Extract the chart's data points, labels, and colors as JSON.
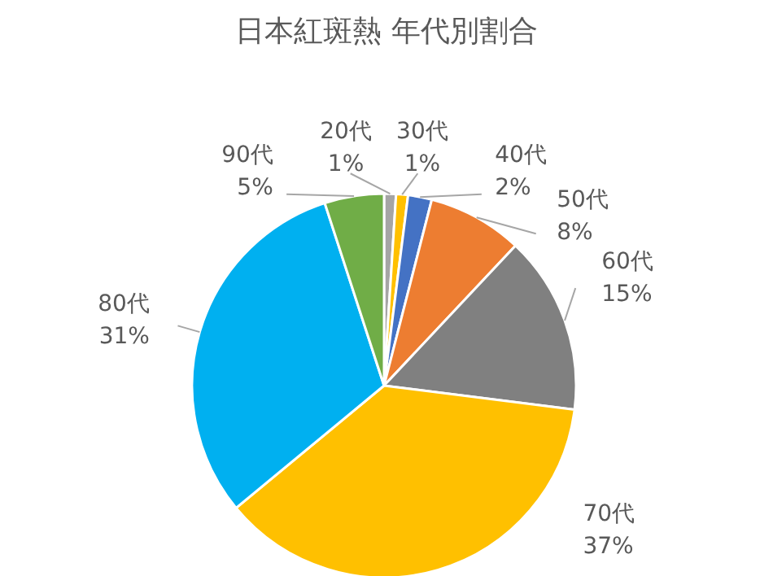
{
  "chart_data": {
    "type": "pie",
    "title": "日本紅斑熱  年代別割合",
    "categories": [
      "20代",
      "30代",
      "40代",
      "50代",
      "60代",
      "70代",
      "80代",
      "90代"
    ],
    "values": [
      1,
      1,
      2,
      8,
      15,
      37,
      31,
      5
    ],
    "value_labels": [
      "1%",
      "1%",
      "2%",
      "8%",
      "15%",
      "37%",
      "31%",
      "5%"
    ],
    "colors": [
      "#a5a5a5",
      "#ffc000",
      "#4472c4",
      "#ed7d31",
      "#808080",
      "#ffc000",
      "#00b0f0",
      "#70ad47"
    ]
  }
}
